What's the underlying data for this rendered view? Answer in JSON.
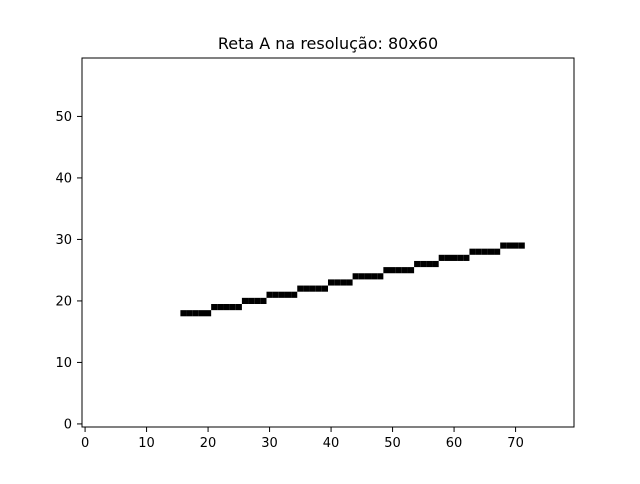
{
  "chart_data": {
    "type": "scatter",
    "title": "Reta A na resolução: 80x60",
    "xlabel": "",
    "ylabel": "",
    "xlim": [
      -0.5,
      79.5
    ],
    "ylim": [
      -0.5,
      59.5
    ],
    "grid": false,
    "marker": "filled pixel cells",
    "pixel_color": "#000000",
    "background_color": "#ffffff",
    "x_ticks": [
      0,
      10,
      20,
      30,
      40,
      50,
      60,
      70
    ],
    "y_ticks": [
      0,
      10,
      20,
      30,
      40,
      50
    ],
    "x_tick_labels": [
      "0",
      "10",
      "20",
      "30",
      "40",
      "50",
      "60",
      "70"
    ],
    "y_tick_labels": [
      "0",
      "10",
      "20",
      "30",
      "40",
      "50"
    ],
    "segments": [
      {
        "x_start": 16,
        "x_end": 20,
        "y": 18
      },
      {
        "x_start": 21,
        "x_end": 25,
        "y": 19
      },
      {
        "x_start": 26,
        "x_end": 29,
        "y": 20
      },
      {
        "x_start": 30,
        "x_end": 34,
        "y": 21
      },
      {
        "x_start": 35,
        "x_end": 39,
        "y": 22
      },
      {
        "x_start": 40,
        "x_end": 43,
        "y": 23
      },
      {
        "x_start": 44,
        "x_end": 48,
        "y": 24
      },
      {
        "x_start": 49,
        "x_end": 53,
        "y": 25
      },
      {
        "x_start": 54,
        "x_end": 57,
        "y": 26
      },
      {
        "x_start": 58,
        "x_end": 62,
        "y": 27
      },
      {
        "x_start": 63,
        "x_end": 67,
        "y": 28
      },
      {
        "x_start": 68,
        "x_end": 71,
        "y": 29
      }
    ]
  }
}
